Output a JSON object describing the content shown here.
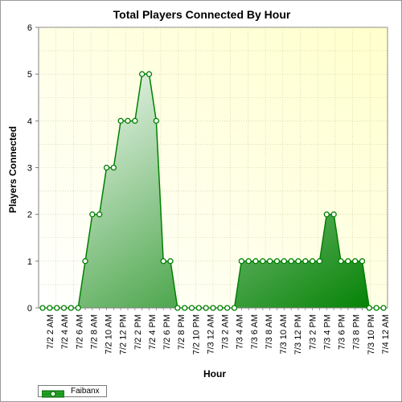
{
  "chart_data": {
    "type": "area",
    "title": "Total Players Connected By Hour",
    "xlabel": "Hour",
    "ylabel": "Players Connected",
    "ylim": [
      0,
      6
    ],
    "yticks": [
      "0",
      "1",
      "2",
      "3",
      "4",
      "5",
      "6"
    ],
    "xtick_labels": [
      "7/2 2 AM",
      "7/2 4 AM",
      "7/2 6 AM",
      "7/2 8 AM",
      "7/2 10 AM",
      "7/2 12 PM",
      "7/2 2 PM",
      "7/2 4 PM",
      "7/2 6 PM",
      "7/2 8 PM",
      "7/2 10 PM",
      "7/3 12 AM",
      "7/3 2 AM",
      "7/3 4 AM",
      "7/3 6 AM",
      "7/3 8 AM",
      "7/3 10 AM",
      "7/3 12 PM",
      "7/3 2 PM",
      "7/3 4 PM",
      "7/3 6 PM",
      "7/3 8 PM",
      "7/3 10 PM",
      "7/4 12 AM"
    ],
    "grid": true,
    "legend_position": "bottom-left",
    "series": [
      {
        "name": "Faibanx",
        "color": "#008000",
        "values": [
          0,
          0,
          0,
          0,
          0,
          0,
          1,
          2,
          2,
          3,
          3,
          4,
          4,
          4,
          5,
          5,
          4,
          1,
          1,
          0,
          0,
          0,
          0,
          0,
          0,
          0,
          0,
          0,
          1,
          1,
          1,
          1,
          1,
          1,
          1,
          1,
          1,
          1,
          1,
          1,
          2,
          2,
          1,
          1,
          1,
          1,
          0,
          0,
          0
        ]
      }
    ]
  },
  "legend": {
    "label": "Faibanx"
  }
}
